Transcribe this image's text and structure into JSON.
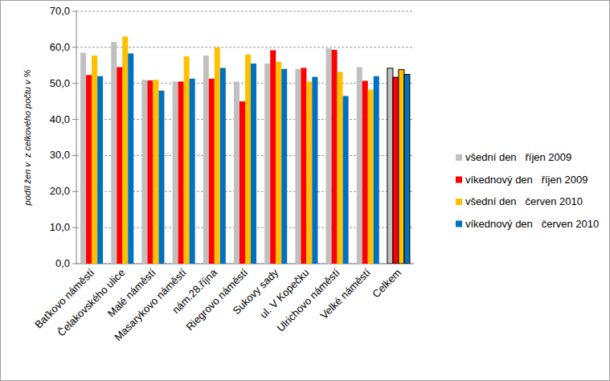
{
  "chart_data": {
    "type": "bar",
    "y_label": "podíl žen v  z celkového počtu v %",
    "categories": [
      "Baťkovo náměstí",
      "Čelakovského ulice",
      "Malé náměstí",
      "Masarykovo náměstí",
      "nám.28.října",
      "Riegrovo náměstí",
      "Sukovy sady",
      "ul. V Kopečku",
      "Ulrichovo náměstí",
      "Velké náměstí",
      "Celkem"
    ],
    "series": [
      {
        "name": "všední den   říjen 2009",
        "color": "#c0c0c0",
        "values": [
          58.5,
          61.5,
          51.0,
          50.5,
          57.7,
          50.5,
          55.5,
          54.0,
          59.7,
          54.5,
          54.2
        ]
      },
      {
        "name": "víkednový den   říjen 2009",
        "color": "#ff0000",
        "values": [
          52.3,
          54.5,
          50.8,
          50.5,
          51.3,
          45.0,
          59.2,
          54.3,
          59.3,
          50.7,
          51.7
        ]
      },
      {
        "name": "všední den   červen 2010",
        "color": "#ffc000",
        "values": [
          57.7,
          63.0,
          51.0,
          57.5,
          60.0,
          58.0,
          56.0,
          50.5,
          53.2,
          48.3,
          53.8
        ]
      },
      {
        "name": "víkednový den   červen 2010",
        "color": "#0070c0",
        "values": [
          52.0,
          58.3,
          48.0,
          51.3,
          54.3,
          55.5,
          54.0,
          51.8,
          46.5,
          52.0,
          52.5
        ]
      }
    ],
    "ylim": [
      0,
      70
    ],
    "yticks": [
      {
        "value": 0,
        "label": "0,0"
      },
      {
        "value": 10,
        "label": "10,0"
      },
      {
        "value": 20,
        "label": "20,0"
      },
      {
        "value": 30,
        "label": "30,0"
      },
      {
        "value": 40,
        "label": "40,0"
      },
      {
        "value": 50,
        "label": "50,0"
      },
      {
        "value": 60,
        "label": "60,0"
      },
      {
        "value": 70,
        "label": "70,0"
      }
    ],
    "grid": true,
    "legend": "right"
  }
}
